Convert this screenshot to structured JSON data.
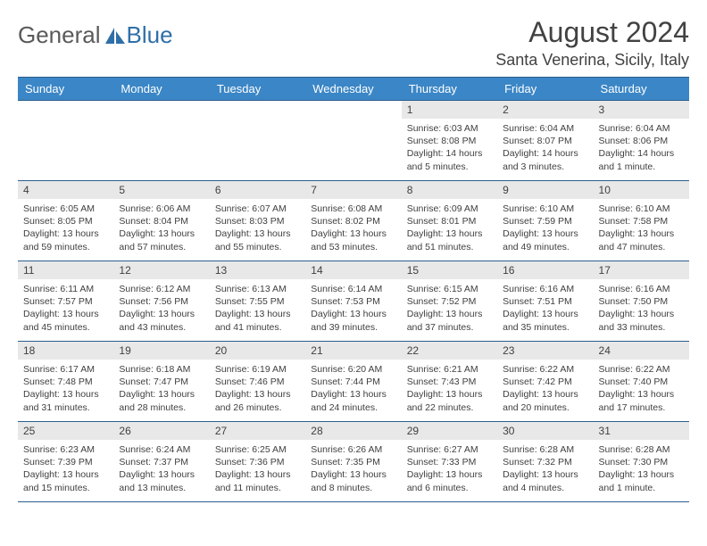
{
  "brand": {
    "part1": "General",
    "part2": "Blue"
  },
  "title": "August 2024",
  "location": "Santa Venerina, Sicily, Italy",
  "colors": {
    "header_bg": "#3b86c6",
    "header_border": "#2b5f8f",
    "daynum_bg": "#e8e8e8",
    "text": "#404040",
    "logo_gray": "#5a5a5a",
    "logo_blue": "#2f6fa8"
  },
  "days_of_week": [
    "Sunday",
    "Monday",
    "Tuesday",
    "Wednesday",
    "Thursday",
    "Friday",
    "Saturday"
  ],
  "weeks": [
    [
      null,
      null,
      null,
      null,
      {
        "n": "1",
        "sunrise": "6:03 AM",
        "sunset": "8:08 PM",
        "daylight": "14 hours and 5 minutes."
      },
      {
        "n": "2",
        "sunrise": "6:04 AM",
        "sunset": "8:07 PM",
        "daylight": "14 hours and 3 minutes."
      },
      {
        "n": "3",
        "sunrise": "6:04 AM",
        "sunset": "8:06 PM",
        "daylight": "14 hours and 1 minute."
      }
    ],
    [
      {
        "n": "4",
        "sunrise": "6:05 AM",
        "sunset": "8:05 PM",
        "daylight": "13 hours and 59 minutes."
      },
      {
        "n": "5",
        "sunrise": "6:06 AM",
        "sunset": "8:04 PM",
        "daylight": "13 hours and 57 minutes."
      },
      {
        "n": "6",
        "sunrise": "6:07 AM",
        "sunset": "8:03 PM",
        "daylight": "13 hours and 55 minutes."
      },
      {
        "n": "7",
        "sunrise": "6:08 AM",
        "sunset": "8:02 PM",
        "daylight": "13 hours and 53 minutes."
      },
      {
        "n": "8",
        "sunrise": "6:09 AM",
        "sunset": "8:01 PM",
        "daylight": "13 hours and 51 minutes."
      },
      {
        "n": "9",
        "sunrise": "6:10 AM",
        "sunset": "7:59 PM",
        "daylight": "13 hours and 49 minutes."
      },
      {
        "n": "10",
        "sunrise": "6:10 AM",
        "sunset": "7:58 PM",
        "daylight": "13 hours and 47 minutes."
      }
    ],
    [
      {
        "n": "11",
        "sunrise": "6:11 AM",
        "sunset": "7:57 PM",
        "daylight": "13 hours and 45 minutes."
      },
      {
        "n": "12",
        "sunrise": "6:12 AM",
        "sunset": "7:56 PM",
        "daylight": "13 hours and 43 minutes."
      },
      {
        "n": "13",
        "sunrise": "6:13 AM",
        "sunset": "7:55 PM",
        "daylight": "13 hours and 41 minutes."
      },
      {
        "n": "14",
        "sunrise": "6:14 AM",
        "sunset": "7:53 PM",
        "daylight": "13 hours and 39 minutes."
      },
      {
        "n": "15",
        "sunrise": "6:15 AM",
        "sunset": "7:52 PM",
        "daylight": "13 hours and 37 minutes."
      },
      {
        "n": "16",
        "sunrise": "6:16 AM",
        "sunset": "7:51 PM",
        "daylight": "13 hours and 35 minutes."
      },
      {
        "n": "17",
        "sunrise": "6:16 AM",
        "sunset": "7:50 PM",
        "daylight": "13 hours and 33 minutes."
      }
    ],
    [
      {
        "n": "18",
        "sunrise": "6:17 AM",
        "sunset": "7:48 PM",
        "daylight": "13 hours and 31 minutes."
      },
      {
        "n": "19",
        "sunrise": "6:18 AM",
        "sunset": "7:47 PM",
        "daylight": "13 hours and 28 minutes."
      },
      {
        "n": "20",
        "sunrise": "6:19 AM",
        "sunset": "7:46 PM",
        "daylight": "13 hours and 26 minutes."
      },
      {
        "n": "21",
        "sunrise": "6:20 AM",
        "sunset": "7:44 PM",
        "daylight": "13 hours and 24 minutes."
      },
      {
        "n": "22",
        "sunrise": "6:21 AM",
        "sunset": "7:43 PM",
        "daylight": "13 hours and 22 minutes."
      },
      {
        "n": "23",
        "sunrise": "6:22 AM",
        "sunset": "7:42 PM",
        "daylight": "13 hours and 20 minutes."
      },
      {
        "n": "24",
        "sunrise": "6:22 AM",
        "sunset": "7:40 PM",
        "daylight": "13 hours and 17 minutes."
      }
    ],
    [
      {
        "n": "25",
        "sunrise": "6:23 AM",
        "sunset": "7:39 PM",
        "daylight": "13 hours and 15 minutes."
      },
      {
        "n": "26",
        "sunrise": "6:24 AM",
        "sunset": "7:37 PM",
        "daylight": "13 hours and 13 minutes."
      },
      {
        "n": "27",
        "sunrise": "6:25 AM",
        "sunset": "7:36 PM",
        "daylight": "13 hours and 11 minutes."
      },
      {
        "n": "28",
        "sunrise": "6:26 AM",
        "sunset": "7:35 PM",
        "daylight": "13 hours and 8 minutes."
      },
      {
        "n": "29",
        "sunrise": "6:27 AM",
        "sunset": "7:33 PM",
        "daylight": "13 hours and 6 minutes."
      },
      {
        "n": "30",
        "sunrise": "6:28 AM",
        "sunset": "7:32 PM",
        "daylight": "13 hours and 4 minutes."
      },
      {
        "n": "31",
        "sunrise": "6:28 AM",
        "sunset": "7:30 PM",
        "daylight": "13 hours and 1 minute."
      }
    ]
  ],
  "labels": {
    "sunrise": "Sunrise:",
    "sunset": "Sunset:",
    "daylight": "Daylight:"
  }
}
